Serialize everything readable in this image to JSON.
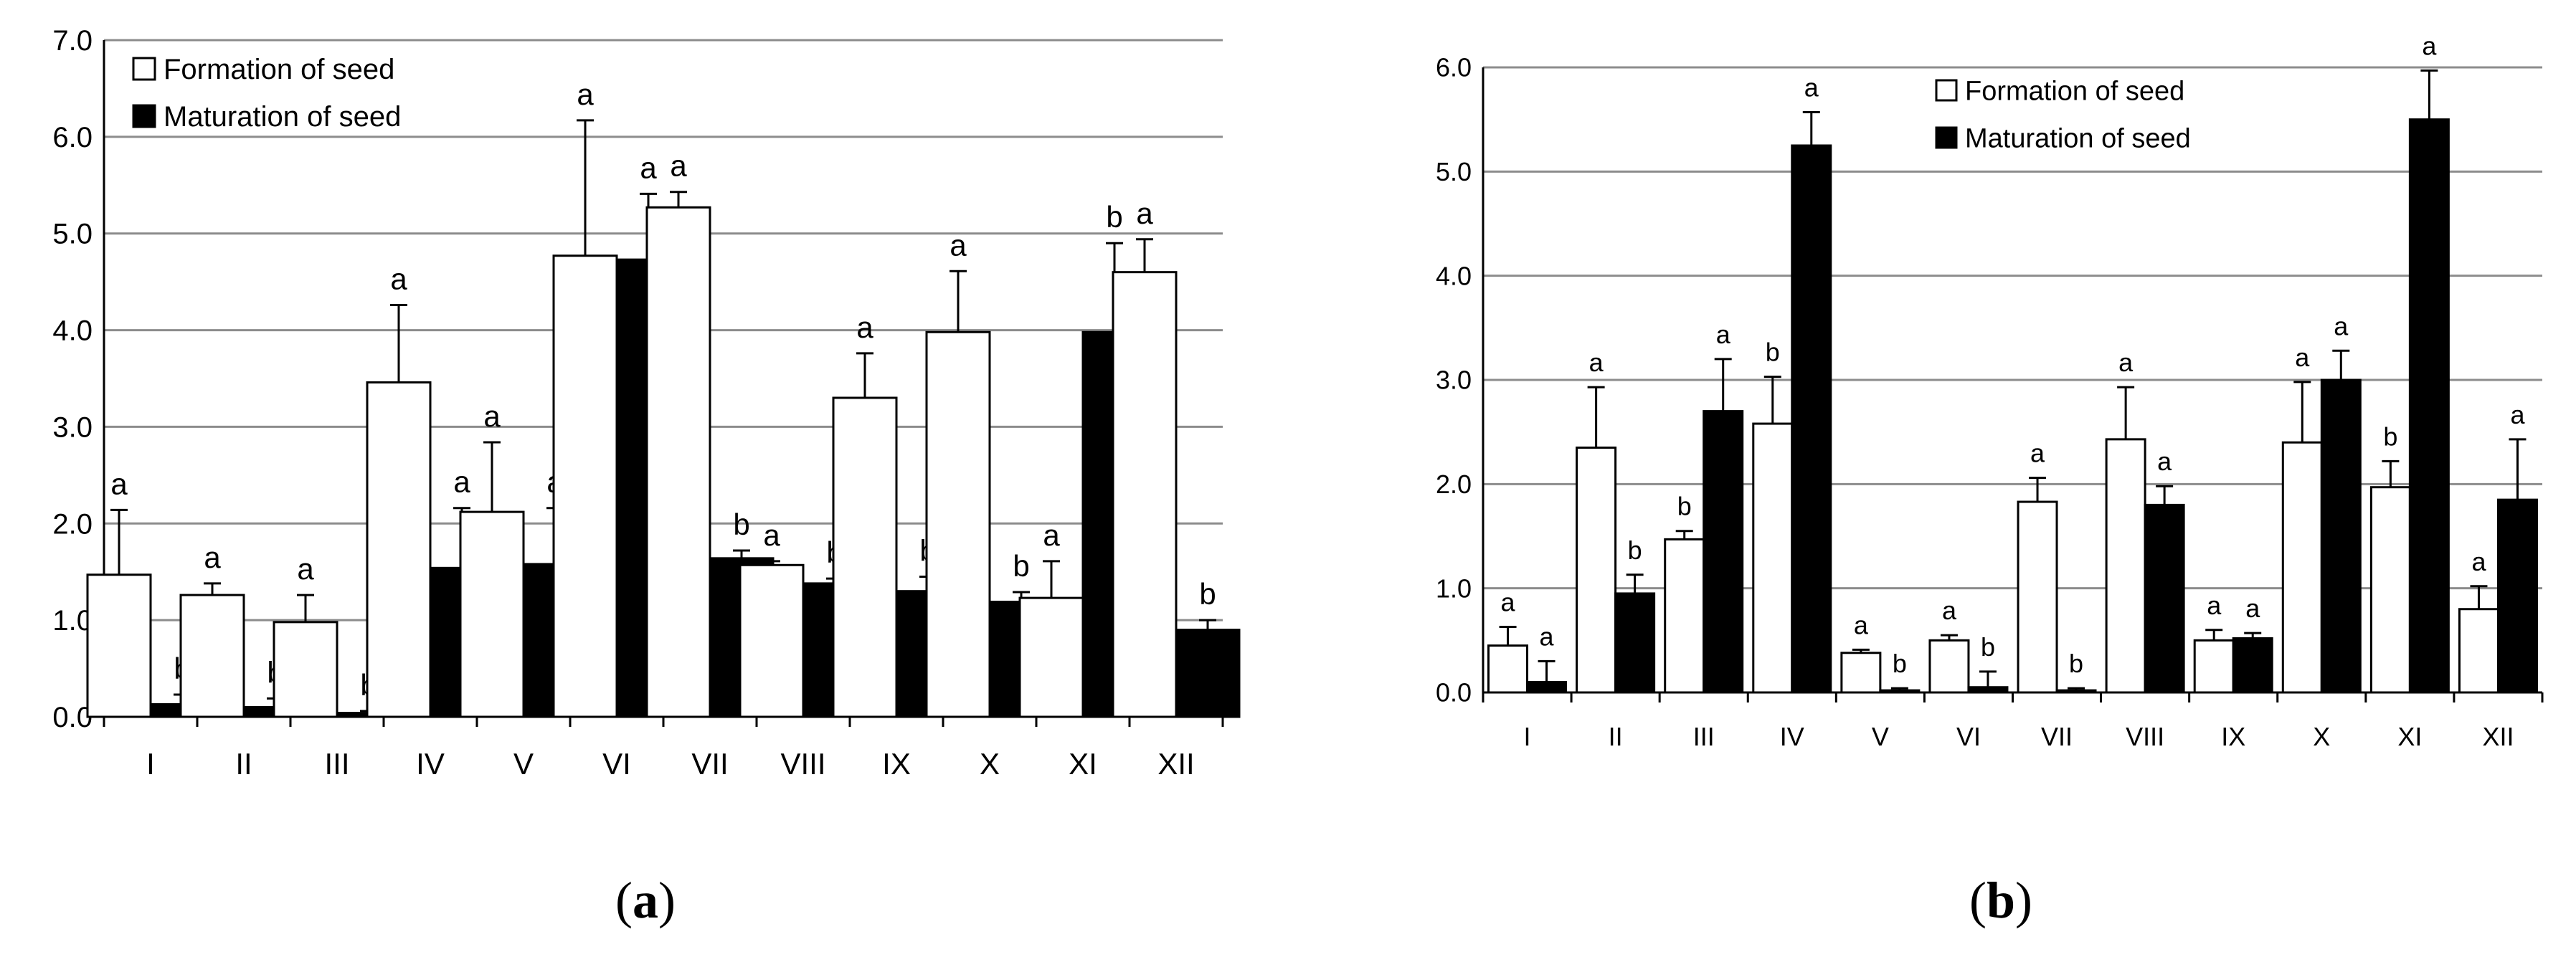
{
  "chart_data": [
    {
      "panel_label": "(a)",
      "panel_letter": "a",
      "type": "bar",
      "categories": [
        "I",
        "II",
        "III",
        "IV",
        "V",
        "VI",
        "VII",
        "VIII",
        "IX",
        "X",
        "XI",
        "XII"
      ],
      "ylim": [
        0,
        7.0
      ],
      "yticks": [
        "0.0",
        "1.0",
        "2.0",
        "3.0",
        "4.0",
        "5.0",
        "6.0",
        "7.0"
      ],
      "grid": true,
      "legend_position": "top-left",
      "series": [
        {
          "name": "Formation of seed",
          "fill": "#ffffff",
          "values": [
            1.47,
            1.26,
            0.98,
            3.46,
            2.12,
            4.77,
            5.27,
            1.57,
            3.3,
            3.98,
            1.23,
            4.6
          ],
          "errors": [
            0.67,
            0.12,
            0.28,
            0.8,
            0.72,
            1.4,
            0.16,
            0.04,
            0.46,
            0.63,
            0.38,
            0.34
          ],
          "labels": [
            "a",
            "a",
            "a",
            "a",
            "a",
            "a",
            "a",
            "a",
            "a",
            "a",
            "a",
            "a"
          ]
        },
        {
          "name": "Maturation of seed",
          "fill": "#000000",
          "values": [
            0.13,
            0.1,
            0.04,
            1.54,
            1.58,
            4.73,
            1.64,
            1.38,
            1.3,
            1.19,
            3.98,
            0.9
          ],
          "errors": [
            0.1,
            0.09,
            0.02,
            0.62,
            0.58,
            0.68,
            0.08,
            0.05,
            0.15,
            0.1,
            0.92,
            0.1
          ],
          "labels": [
            "b",
            "b",
            "b",
            "a",
            "a",
            "a",
            "b",
            "b",
            "b",
            "b",
            "b",
            "b"
          ]
        }
      ]
    },
    {
      "panel_label": "(b)",
      "panel_letter": "b",
      "type": "bar",
      "categories": [
        "I",
        "II",
        "III",
        "IV",
        "V",
        "VI",
        "VII",
        "VIII",
        "IX",
        "X",
        "XI",
        "XII"
      ],
      "ylim": [
        0,
        6.0
      ],
      "yticks": [
        "0.0",
        "1.0",
        "2.0",
        "3.0",
        "4.0",
        "5.0",
        "6.0"
      ],
      "grid": true,
      "legend_position": "top-center",
      "series": [
        {
          "name": "Formation of seed",
          "fill": "#ffffff",
          "values": [
            0.45,
            2.35,
            1.47,
            2.58,
            0.38,
            0.5,
            1.83,
            2.43,
            0.5,
            2.4,
            1.97,
            0.8
          ],
          "errors": [
            0.18,
            0.58,
            0.08,
            0.45,
            0.03,
            0.05,
            0.23,
            0.5,
            0.1,
            0.58,
            0.25,
            0.22
          ],
          "labels": [
            "a",
            "a",
            "b",
            "b",
            "a",
            "a",
            "a",
            "a",
            "a",
            "a",
            "b",
            "a"
          ]
        },
        {
          "name": "Maturation of seed",
          "fill": "#000000",
          "values": [
            0.1,
            0.95,
            2.7,
            5.25,
            0.02,
            0.05,
            0.02,
            1.8,
            0.52,
            3.0,
            5.5,
            1.85
          ],
          "errors": [
            0.2,
            0.18,
            0.5,
            0.32,
            0.02,
            0.15,
            0.02,
            0.18,
            0.05,
            0.28,
            0.47,
            0.58
          ],
          "labels": [
            "a",
            "b",
            "a",
            "a",
            "b",
            "b",
            "b",
            "a",
            "a",
            "a",
            "a",
            "a"
          ]
        }
      ]
    }
  ]
}
